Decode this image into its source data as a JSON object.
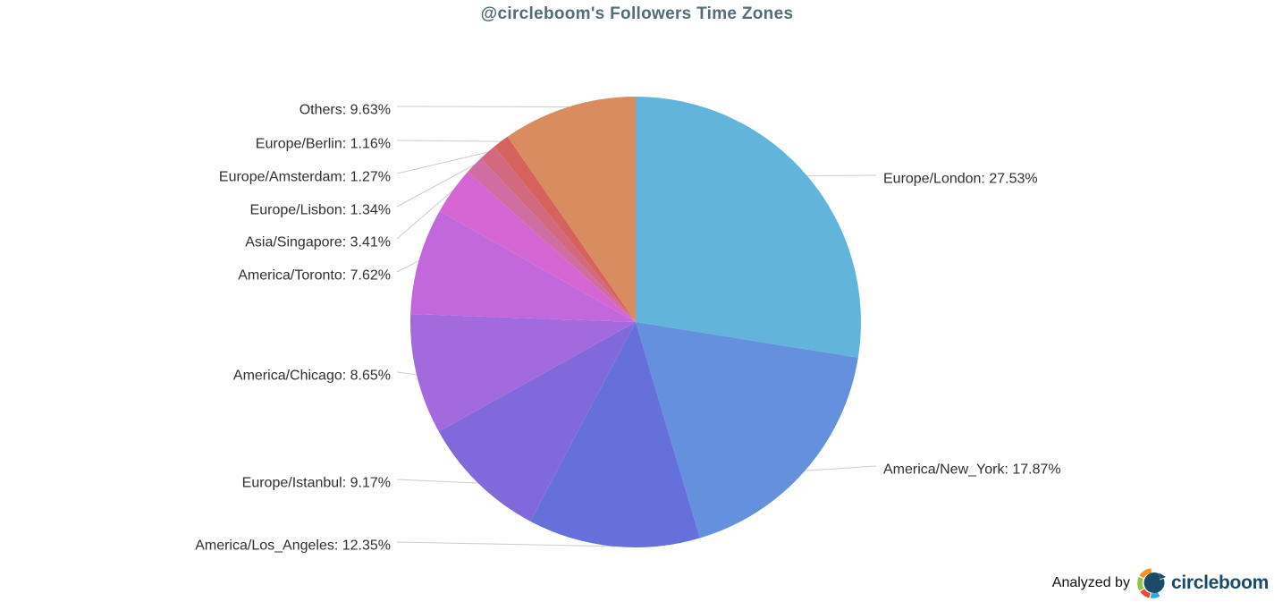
{
  "title": "@circleboom's Followers Time Zones",
  "footer": {
    "analyzed_by": "Analyzed by",
    "brand": "circleboom"
  },
  "chart_data": {
    "type": "pie",
    "title": "@circleboom's Followers Time Zones",
    "unit": "%",
    "start_angle_deg": 0,
    "direction": "clockwise",
    "legend": "none",
    "label_format": "{label}: {value}%",
    "connector_color": "#cccccc",
    "slices": [
      {
        "label": "Europe/London",
        "value": 27.53,
        "color": "#63B4DB"
      },
      {
        "label": "America/New_York",
        "value": 17.87,
        "color": "#6590DD"
      },
      {
        "label": "America/Los_Angeles",
        "value": 12.35,
        "color": "#6670DB"
      },
      {
        "label": "Europe/Istanbul",
        "value": 9.17,
        "color": "#8269DB"
      },
      {
        "label": "America/Chicago",
        "value": 8.65,
        "color": "#A26ADC"
      },
      {
        "label": "America/Toronto",
        "value": 7.62,
        "color": "#C268DC"
      },
      {
        "label": "Asia/Singapore",
        "value": 3.41,
        "color": "#D666D3"
      },
      {
        "label": "Europe/Lisbon",
        "value": 1.34,
        "color": "#D06DA2"
      },
      {
        "label": "Europe/Amsterdam",
        "value": 1.27,
        "color": "#D2697E"
      },
      {
        "label": "Europe/Berlin",
        "value": 1.16,
        "color": "#D5625C"
      },
      {
        "label": "Others",
        "value": 9.63,
        "color": "#D98C5F"
      }
    ],
    "logo_colors": {
      "navy": "#1D4A68",
      "orange": "#F7941E",
      "green": "#8DC63F",
      "red": "#E64C2E",
      "blue": "#2BA9E0"
    }
  }
}
